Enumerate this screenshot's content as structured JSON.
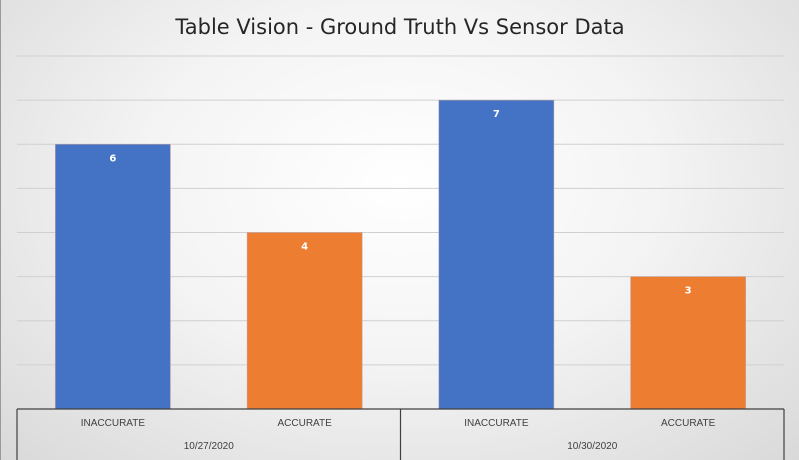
{
  "chart_data": {
    "type": "bar",
    "title": "Table Vision  - Ground Truth Vs Sensor Data",
    "xlabel": "",
    "ylabel": "",
    "ylim": [
      0,
      8
    ],
    "grid": true,
    "legend": "none",
    "groups": [
      {
        "label": "10/27/2020",
        "bars": [
          {
            "category": "INACCURATE",
            "value": 6,
            "color": "#4472C4"
          },
          {
            "category": "ACCURATE",
            "value": 4,
            "color": "#ED7D31"
          }
        ]
      },
      {
        "label": "10/30/2020",
        "bars": [
          {
            "category": "INACCURATE",
            "value": 7,
            "color": "#4472C4"
          },
          {
            "category": "ACCURATE",
            "value": 3,
            "color": "#ED7D31"
          }
        ]
      }
    ]
  }
}
